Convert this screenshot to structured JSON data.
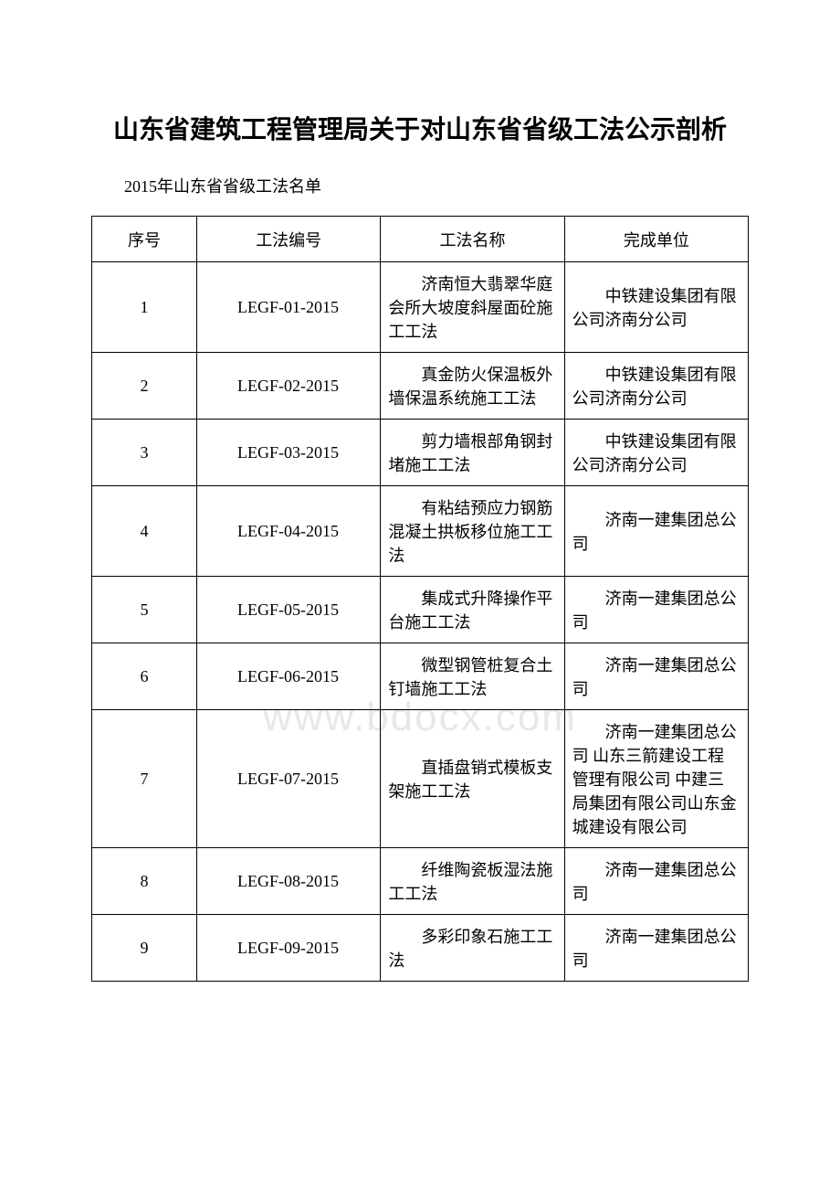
{
  "document": {
    "title": "山东省建筑工程管理局关于对山东省省级工法公示剖析",
    "subtitle": "2015年山东省省级工法名单",
    "watermark": "www.bdocx.com"
  },
  "table": {
    "headers": {
      "seq": "序号",
      "code": "工法编号",
      "name": "工法名称",
      "unit": "完成单位"
    },
    "rows": [
      {
        "seq": "1",
        "code": "LEGF-01-2015",
        "name": "济南恒大翡翠华庭会所大坡度斜屋面砼施工工法",
        "unit": "中铁建设集团有限公司济南分公司"
      },
      {
        "seq": "2",
        "code": "LEGF-02-2015",
        "name": "真金防火保温板外墙保温系统施工工法",
        "unit": "中铁建设集团有限公司济南分公司"
      },
      {
        "seq": "3",
        "code": "LEGF-03-2015",
        "name": "剪力墙根部角钢封堵施工工法",
        "unit": "中铁建设集团有限公司济南分公司"
      },
      {
        "seq": "4",
        "code": "LEGF-04-2015",
        "name": "有粘结预应力钢筋混凝土拱板移位施工工法",
        "unit": "济南一建集团总公司"
      },
      {
        "seq": "5",
        "code": "LEGF-05-2015",
        "name": "集成式升降操作平台施工工法",
        "unit": "济南一建集团总公司"
      },
      {
        "seq": "6",
        "code": "LEGF-06-2015",
        "name": "微型钢管桩复合土钉墙施工工法",
        "unit": "济南一建集团总公司"
      },
      {
        "seq": "7",
        "code": "LEGF-07-2015",
        "name": "直插盘销式模板支架施工工法",
        "unit": "济南一建集团总公司 山东三箭建设工程管理有限公司 中建三局集团有限公司山东金城建设有限公司"
      },
      {
        "seq": "8",
        "code": "LEGF-08-2015",
        "name": "纤维陶瓷板湿法施工工法",
        "unit": "济南一建集团总公司"
      },
      {
        "seq": "9",
        "code": "LEGF-09-2015",
        "name": "多彩印象石施工工法",
        "unit": "济南一建集团总公司"
      }
    ]
  }
}
